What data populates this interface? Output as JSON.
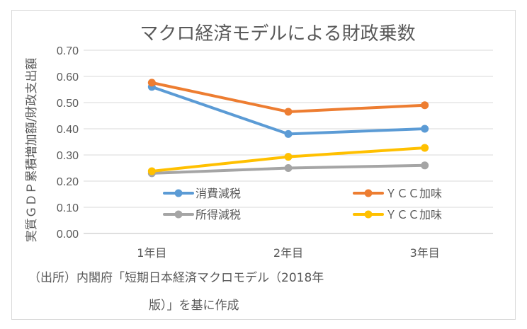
{
  "chart_data": {
    "type": "line",
    "title": "マクロ経済モデルによる財政乗数",
    "ylabel": "実質ＧＤＰ累積増加額/財政支出額",
    "xlabel": "",
    "categories": [
      "1年目",
      "2年目",
      "3年目"
    ],
    "ylim": [
      0,
      0.7
    ],
    "yticks": [
      "0.00",
      "0.10",
      "0.20",
      "0.30",
      "0.40",
      "0.50",
      "0.60",
      "0.70"
    ],
    "grid": true,
    "legend_position": "inside-bottom",
    "series": [
      {
        "name": "消費減税",
        "values": [
          0.56,
          0.38,
          0.4
        ],
        "color": "#5b9bd5"
      },
      {
        "name": "ＹＣＣ加味",
        "values": [
          0.576,
          0.465,
          0.49
        ],
        "color": "#ed7d31"
      },
      {
        "name": "所得減税",
        "values": [
          0.23,
          0.25,
          0.26
        ],
        "color": "#a5a5a5"
      },
      {
        "name": "ＹＣＣ加味",
        "values": [
          0.238,
          0.293,
          0.327
        ],
        "color": "#ffc000"
      }
    ],
    "source_lines": [
      "（出所）内閣府「短期日本経済マクロモデル（2018年",
      "版）」を基に作成"
    ]
  }
}
